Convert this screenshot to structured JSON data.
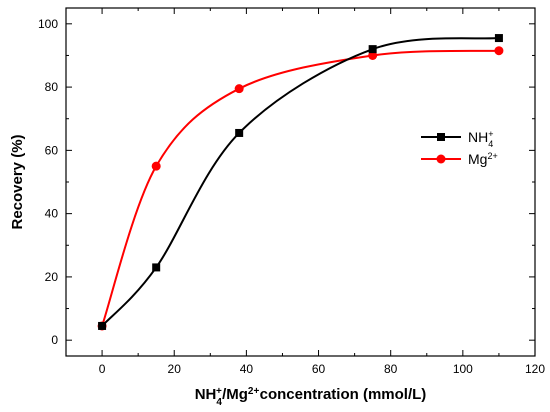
{
  "chart_data": {
    "type": "line",
    "xlabel": "NH4+/Mg2+ concentration (mmol/L)",
    "ylabel": "Recovery (%)",
    "xlim": [
      -10,
      120
    ],
    "ylim": [
      -5,
      105
    ],
    "x_ticks": [
      0,
      20,
      40,
      60,
      80,
      100,
      120
    ],
    "y_ticks": [
      0,
      20,
      40,
      60,
      80,
      100
    ],
    "grid": false,
    "legend_position": "right",
    "series": [
      {
        "name": "NH4+",
        "color": "#000000",
        "marker": "square",
        "x": [
          0,
          15,
          38,
          75,
          110
        ],
        "y": [
          4.5,
          23,
          65.5,
          92,
          95.5
        ]
      },
      {
        "name": "Mg2+",
        "color": "#ff0000",
        "marker": "circle",
        "x": [
          0,
          15,
          38,
          75,
          110
        ],
        "y": [
          4.5,
          55,
          79.5,
          90,
          91.5
        ]
      }
    ]
  }
}
